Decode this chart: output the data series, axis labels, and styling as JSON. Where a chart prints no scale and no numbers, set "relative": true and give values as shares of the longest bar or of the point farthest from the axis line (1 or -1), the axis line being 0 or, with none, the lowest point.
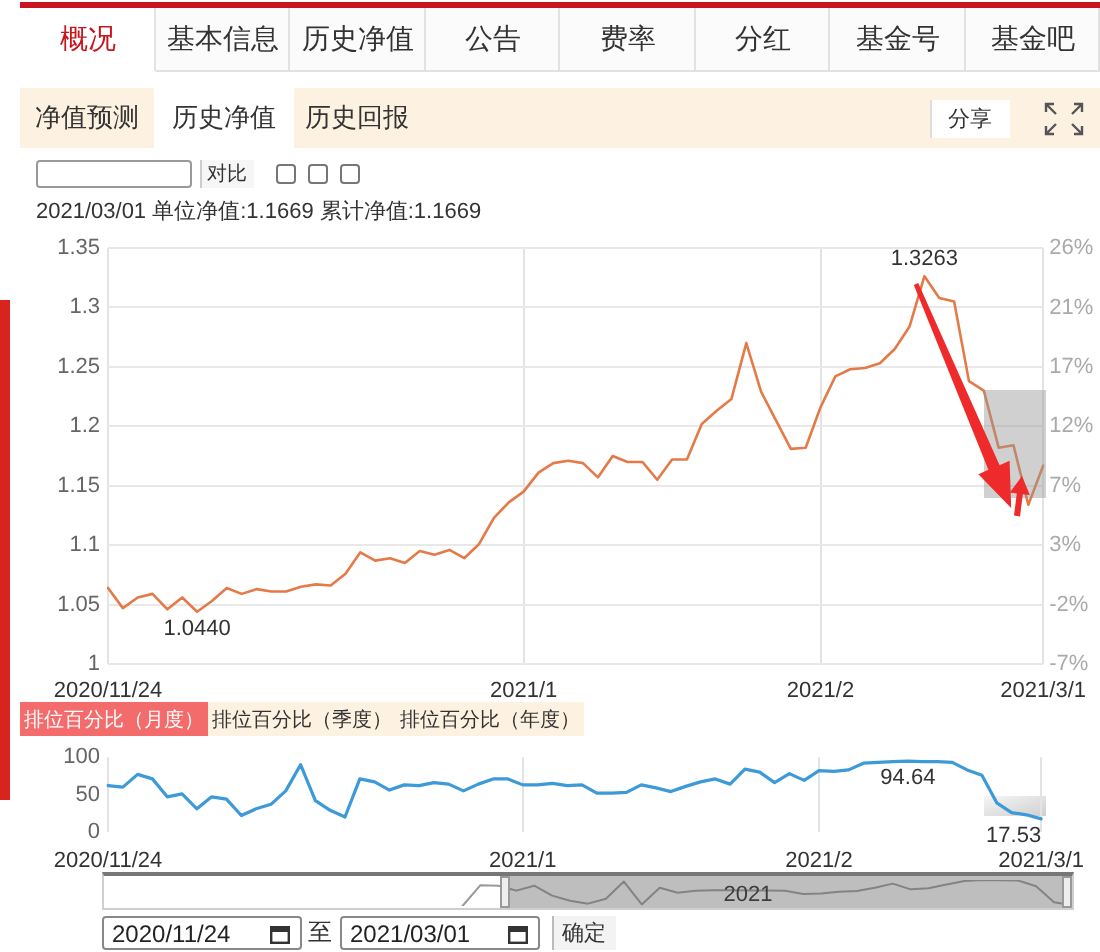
{
  "chart_data": [
    {
      "type": "other",
      "annotations": [
        "概况",
        "基本信息",
        "历史净值",
        "公告",
        "费率",
        "分红",
        "基金号",
        "基金吧"
      ]
    },
    {
      "type": "other",
      "annotations": [
        "净值预测",
        "历史净值",
        "历史回报",
        "分享",
        "对比"
      ]
    },
    {
      "type": "line",
      "title": "2021/03/01 单位净值:1.1669 累计净值:1.1669",
      "categories": [
        "2020/11/24",
        null,
        null,
        null,
        null,
        null,
        null,
        null,
        null,
        null,
        null,
        null,
        null,
        null,
        null,
        null,
        null,
        null,
        null,
        null,
        null,
        null,
        null,
        null,
        null,
        null,
        null,
        null,
        "2021/1",
        null,
        null,
        null,
        null,
        null,
        null,
        null,
        null,
        null,
        null,
        null,
        null,
        null,
        null,
        null,
        null,
        null,
        null,
        null,
        "2021/2",
        null,
        null,
        null,
        null,
        null,
        null,
        null,
        null,
        null,
        null,
        null,
        null,
        null,
        null,
        "2021/3/1"
      ],
      "series": [
        {
          "color": "#e47a48",
          "values": [
            1.064,
            1.047,
            1.056,
            1.059,
            1.046,
            1.056,
            1.044,
            1.053,
            1.064,
            1.059,
            1.063,
            1.061,
            1.061,
            1.065,
            1.067,
            1.066,
            1.076,
            1.094,
            1.087,
            1.089,
            1.085,
            1.095,
            1.092,
            1.096,
            1.089,
            1.101,
            1.123,
            1.136,
            1.145,
            1.161,
            1.169,
            1.171,
            1.169,
            1.157,
            1.175,
            1.17,
            1.17,
            1.155,
            1.172,
            1.172,
            1.202,
            1.213,
            1.223,
            1.27,
            1.229,
            1.205,
            1.181,
            1.182,
            1.216,
            1.242,
            1.248,
            1.249,
            1.253,
            1.265,
            1.284,
            1.3263,
            1.308,
            1.305,
            1.238,
            1.23,
            1.182,
            1.184,
            1.134,
            1.1669
          ],
          "value_labels": [
            null,
            null,
            null,
            null,
            null,
            null,
            "1.0440",
            null,
            null,
            null,
            null,
            null,
            null,
            null,
            null,
            null,
            null,
            null,
            null,
            null,
            null,
            null,
            null,
            null,
            null,
            null,
            null,
            null,
            null,
            null,
            null,
            null,
            null,
            null,
            null,
            null,
            null,
            null,
            null,
            null,
            null,
            null,
            null,
            null,
            null,
            null,
            null,
            null,
            null,
            null,
            null,
            null,
            null,
            null,
            null,
            "1.3263",
            null,
            null,
            null,
            null,
            null,
            null,
            null,
            null
          ]
        }
      ],
      "ylim": [
        1,
        1.35
      ],
      "yticks": [
        1,
        1.05,
        1.1,
        1.15,
        1.2,
        1.25,
        1.3,
        1.35
      ],
      "y2lim": [
        -6.69,
        25.97
      ],
      "y2ticks": [
        {
          "value": -6.69,
          "label": "-7%"
        },
        {
          "value": -2.03,
          "label": "-2%"
        },
        {
          "value": 2.64,
          "label": "3%"
        },
        {
          "value": 7.31,
          "label": "7%"
        },
        {
          "value": 11.97,
          "label": "12%"
        },
        {
          "value": 16.64,
          "label": "17%"
        },
        {
          "value": 21.3,
          "label": "21%"
        },
        {
          "value": 25.97,
          "label": "26%"
        }
      ],
      "grid": true
    },
    {
      "type": "other",
      "annotations": [
        "排位百分比（月度）",
        "排位百分比（季度）",
        "排位百分比（年度）"
      ]
    },
    {
      "type": "line",
      "categories": [
        "2020/11/24",
        null,
        null,
        null,
        null,
        null,
        null,
        null,
        null,
        null,
        null,
        null,
        null,
        null,
        null,
        null,
        null,
        null,
        null,
        null,
        null,
        null,
        null,
        null,
        null,
        null,
        null,
        null,
        "2021/1",
        null,
        null,
        null,
        null,
        null,
        null,
        null,
        null,
        null,
        null,
        null,
        null,
        null,
        null,
        null,
        null,
        null,
        null,
        null,
        "2021/2",
        null,
        null,
        null,
        null,
        null,
        null,
        null,
        null,
        null,
        null,
        null,
        null,
        null,
        null,
        "2021/3/1"
      ],
      "series": [
        {
          "color": "#3d9ad8",
          "values": [
            62,
            60,
            77,
            71,
            47,
            51,
            31,
            47,
            44,
            22,
            31,
            37,
            55,
            90,
            42,
            29,
            20,
            71,
            67,
            56,
            63,
            62,
            66,
            64,
            55,
            64,
            71,
            71,
            63,
            63,
            65,
            62,
            63,
            52,
            52,
            53,
            63,
            59,
            54,
            61,
            67,
            71,
            64,
            84,
            80,
            66,
            78,
            69,
            82,
            81,
            83,
            92,
            93,
            94,
            94.64,
            94,
            94,
            93,
            83,
            76,
            39,
            26,
            23,
            17.53
          ],
          "value_labels": [
            null,
            null,
            null,
            null,
            null,
            null,
            null,
            null,
            null,
            null,
            null,
            null,
            null,
            null,
            null,
            null,
            null,
            null,
            null,
            null,
            null,
            null,
            null,
            null,
            null,
            null,
            null,
            null,
            null,
            null,
            null,
            null,
            null,
            null,
            null,
            null,
            null,
            null,
            null,
            null,
            null,
            null,
            null,
            null,
            null,
            null,
            null,
            null,
            null,
            null,
            null,
            null,
            null,
            null,
            "94.64",
            null,
            null,
            null,
            null,
            null,
            null,
            null,
            null,
            "17.53"
          ]
        }
      ],
      "ylim": [
        0,
        100
      ],
      "yticks": [
        0,
        50,
        100
      ],
      "grid": "x"
    },
    {
      "type": "line",
      "relative": true,
      "annotations": [
        "2021"
      ],
      "categories": [
        null,
        null,
        null,
        null,
        null,
        null,
        null,
        null,
        null,
        null,
        null,
        null,
        null,
        null,
        null,
        null,
        null,
        null,
        null,
        null,
        null,
        null,
        null,
        null,
        null,
        null,
        null,
        null,
        null,
        null,
        null,
        null,
        null,
        null,
        null,
        null,
        null,
        null,
        null,
        null,
        null,
        null,
        null,
        null,
        null,
        null,
        null,
        null,
        null,
        null,
        null,
        null,
        null,
        null,
        null
      ],
      "values": [
        null,
        null,
        null,
        null,
        null,
        null,
        null,
        null,
        null,
        null,
        null,
        null,
        null,
        null,
        null,
        null,
        null,
        null,
        null,
        null,
        0,
        0.8,
        0.78,
        0.59,
        0.78,
        0.4,
        0.2,
        0.09,
        0.28,
        0.94,
        0.06,
        0.7,
        0.51,
        0.59,
        0.61,
        0.61,
        0.6,
        0.6,
        0.59,
        0.46,
        0.48,
        0.55,
        0.58,
        0.7,
        0.86,
        0.64,
        0.68,
        0.83,
        0.96,
        1,
        0.99,
        0.98,
        0.76,
        0.14,
        0.03
      ],
      "color": "#999999"
    },
    {
      "type": "other",
      "annotations": [
        "2020/11/24",
        "至",
        "2021/03/01",
        "确定"
      ]
    }
  ]
}
